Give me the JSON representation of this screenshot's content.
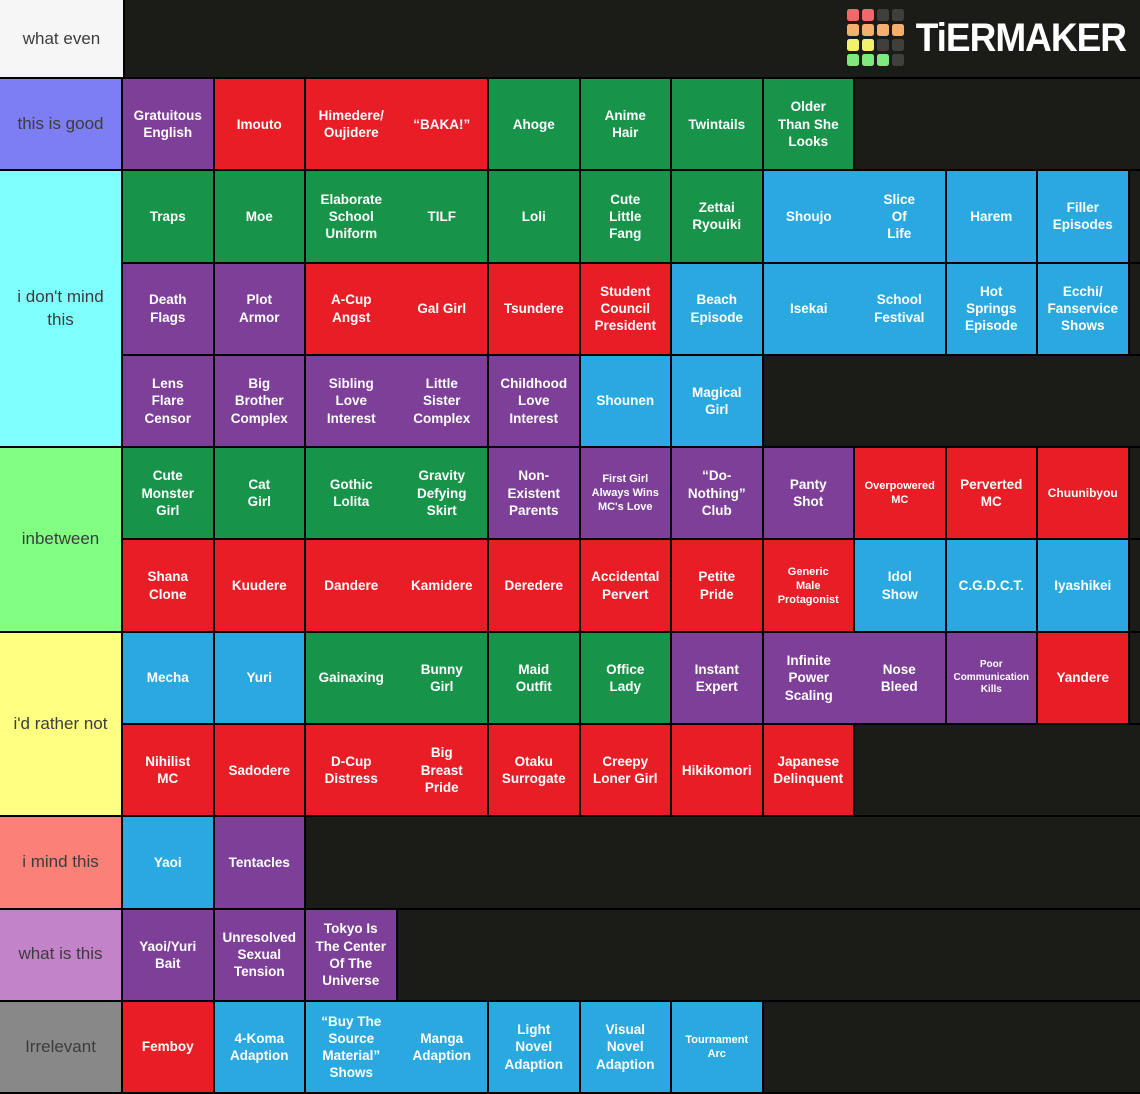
{
  "header": {
    "label": "what even",
    "logo_text": "TiERMAKER"
  },
  "logo": {
    "grid": [
      [
        "logo_red",
        "logo_red",
        "dark",
        "dark"
      ],
      [
        "logo_orange",
        "logo_orange",
        "logo_orange",
        "logo_orange"
      ],
      [
        "logo_yellow",
        "logo_yellow",
        "dark",
        "dark"
      ],
      [
        "logo_green",
        "logo_green",
        "logo_green",
        "dark"
      ]
    ]
  },
  "colors": {
    "green": "#17934a",
    "red": "#e81d26",
    "blue": "#2aa9e0",
    "purple": "#7d3f98",
    "dark": "#3f3f3c",
    "logo_red": "#ee6a6a",
    "logo_orange": "#f5ae6e",
    "logo_yellow": "#f3f06a",
    "logo_green": "#7fe87f"
  },
  "tiers": [
    {
      "label": "this is good",
      "label_bg": "#7d7df4",
      "rows": [
        [
          {
            "label": "Gratuitous\nEnglish",
            "color": "purple"
          },
          {
            "label": "Imouto",
            "color": "red"
          },
          {
            "labels": [
              "Himedere/\nOujidere",
              "“BAKA!”"
            ],
            "color": "red",
            "units": 2
          },
          {
            "label": "Ahoge",
            "color": "green"
          },
          {
            "label": "Anime\nHair",
            "color": "green"
          },
          {
            "label": "Twintails",
            "color": "green"
          },
          {
            "label": "Older\nThan She\nLooks",
            "color": "green"
          }
        ]
      ]
    },
    {
      "label": "i don't mind this",
      "label_bg": "#80ffff",
      "rows": [
        [
          {
            "label": "Traps",
            "color": "green"
          },
          {
            "label": "Moe",
            "color": "green"
          },
          {
            "labels": [
              "Elaborate\nSchool\nUniform",
              "TILF"
            ],
            "color": "green",
            "units": 2
          },
          {
            "label": "Loli",
            "color": "green"
          },
          {
            "label": "Cute\nLittle\nFang",
            "color": "green"
          },
          {
            "label": "Zettai\nRyouiki",
            "color": "green"
          },
          {
            "labels": [
              "Shoujo",
              "Slice\nOf\nLife"
            ],
            "color": "blue",
            "units": 2
          },
          {
            "label": "Harem",
            "color": "blue"
          },
          {
            "label": "Filler\nEpisodes",
            "color": "blue"
          }
        ],
        [
          {
            "label": "Death\nFlags",
            "color": "purple"
          },
          {
            "label": "Plot\nArmor",
            "color": "purple"
          },
          {
            "labels": [
              "A-Cup\nAngst",
              "Gal Girl"
            ],
            "color": "red",
            "units": 2
          },
          {
            "label": "Tsundere",
            "color": "red"
          },
          {
            "label": "Student\nCouncil\nPresident",
            "color": "red"
          },
          {
            "label": "Beach\nEpisode",
            "color": "blue"
          },
          {
            "labels": [
              "Isekai",
              "School\nFestival"
            ],
            "color": "blue",
            "units": 2
          },
          {
            "label": "Hot\nSprings\nEpisode",
            "color": "blue"
          },
          {
            "label": "Ecchi/\nFanservice\nShows",
            "color": "blue"
          }
        ],
        [
          {
            "label": "Lens\nFlare\nCensor",
            "color": "purple"
          },
          {
            "label": "Big\nBrother\nComplex",
            "color": "purple"
          },
          {
            "labels": [
              "Sibling\nLove\nInterest",
              "Little\nSister\nComplex"
            ],
            "color": "purple",
            "units": 2
          },
          {
            "label": "Childhood\nLove\nInterest",
            "color": "purple"
          },
          {
            "label": "Shounen",
            "color": "blue"
          },
          {
            "label": "Magical\nGirl",
            "color": "blue"
          }
        ]
      ]
    },
    {
      "label": "inbetween",
      "label_bg": "#82ff82",
      "rows": [
        [
          {
            "label": "Cute\nMonster\nGirl",
            "color": "green"
          },
          {
            "label": "Cat\nGirl",
            "color": "green"
          },
          {
            "labels": [
              "Gothic\nLolita",
              "Gravity\nDefying\nSkirt"
            ],
            "color": "green",
            "units": 2
          },
          {
            "label": "Non-\nExistent\nParents",
            "color": "purple"
          },
          {
            "label": "First Girl\nAlways Wins\nMC's Love",
            "color": "purple",
            "fs": 11
          },
          {
            "label": "“Do-\nNothing”\nClub",
            "color": "purple"
          },
          {
            "label": "Panty\nShot",
            "color": "purple"
          },
          {
            "label": "Overpowered\nMC",
            "color": "red",
            "fs": 11
          },
          {
            "label": "Perverted\nMC",
            "color": "red"
          },
          {
            "label": "Chuunibyou",
            "color": "red",
            "fs": 12
          }
        ],
        [
          {
            "label": "Shana\nClone",
            "color": "red"
          },
          {
            "label": "Kuudere",
            "color": "red"
          },
          {
            "labels": [
              "Dandere",
              "Kamidere"
            ],
            "color": "red",
            "units": 2
          },
          {
            "label": "Deredere",
            "color": "red"
          },
          {
            "label": "Accidental\nPervert",
            "color": "red"
          },
          {
            "label": "Petite\nPride",
            "color": "red"
          },
          {
            "label": "Generic\nMale\nProtagonist",
            "color": "red",
            "fs": 11
          },
          {
            "label": "Idol\nShow",
            "color": "blue"
          },
          {
            "label": "C.G.D.C.T.",
            "color": "blue"
          },
          {
            "label": "Iyashikei",
            "color": "blue"
          }
        ]
      ]
    },
    {
      "label": "i'd rather not",
      "label_bg": "#ffff82",
      "rows": [
        [
          {
            "label": "Mecha",
            "color": "blue"
          },
          {
            "label": "Yuri",
            "color": "blue"
          },
          {
            "labels": [
              "Gainaxing",
              "Bunny\nGirl"
            ],
            "color": "green",
            "units": 2
          },
          {
            "label": "Maid\nOutfit",
            "color": "green"
          },
          {
            "label": "Office\nLady",
            "color": "green"
          },
          {
            "label": "Instant\nExpert",
            "color": "purple"
          },
          {
            "labels": [
              "Infinite\nPower\nScaling",
              "Nose\nBleed"
            ],
            "color": "purple",
            "units": 2
          },
          {
            "label": "Poor\nCommunication\nKills",
            "color": "purple",
            "fs": 10
          },
          {
            "label": "Yandere",
            "color": "red"
          }
        ],
        [
          {
            "label": "Nihilist\nMC",
            "color": "red"
          },
          {
            "label": "Sadodere",
            "color": "red"
          },
          {
            "labels": [
              "D-Cup\nDistress",
              "Big\nBreast\nPride"
            ],
            "color": "red",
            "units": 2
          },
          {
            "label": "Otaku\nSurrogate",
            "color": "red"
          },
          {
            "label": "Creepy\nLoner Girl",
            "color": "red"
          },
          {
            "label": "Hikikomori",
            "color": "red"
          },
          {
            "label": "Japanese\nDelinquent",
            "color": "red"
          }
        ]
      ]
    },
    {
      "label": "i mind this",
      "label_bg": "#fb8078",
      "rows": [
        [
          {
            "label": "Yaoi",
            "color": "blue"
          },
          {
            "label": "Tentacles",
            "color": "purple"
          }
        ]
      ]
    },
    {
      "label": "what is this",
      "label_bg": "#c283c8",
      "rows": [
        [
          {
            "label": "Yaoi/Yuri\nBait",
            "color": "purple"
          },
          {
            "label": "Unresolved\nSexual\nTension",
            "color": "purple"
          },
          {
            "label": "Tokyo Is\nThe Center\nOf The\nUniverse",
            "color": "purple"
          }
        ]
      ]
    },
    {
      "label": "Irrelevant",
      "label_bg": "#888888",
      "rows": [
        [
          {
            "label": "Femboy",
            "color": "red"
          },
          {
            "label": "4-Koma\nAdaption",
            "color": "blue"
          },
          {
            "labels": [
              "“Buy The\nSource\nMaterial”\nShows",
              "Manga\nAdaption"
            ],
            "color": "blue",
            "units": 2
          },
          {
            "label": "Light\nNovel\nAdaption",
            "color": "blue"
          },
          {
            "label": "Visual\nNovel\nAdaption",
            "color": "blue"
          },
          {
            "label": "Tournament\nArc",
            "color": "blue",
            "fs": 11
          }
        ]
      ]
    }
  ]
}
